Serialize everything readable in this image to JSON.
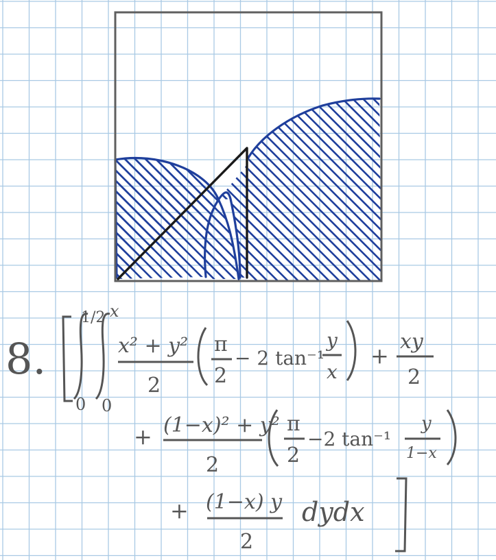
{
  "colors": {
    "paper": "#ffffff",
    "grid": "#a9c9e4",
    "pencil": "#555555",
    "ink_black": "#1a1a1a",
    "ink_blue": "#1f3f9c"
  },
  "figure": {
    "description_icon": "shaded-region-diagram-icon"
  },
  "problem": {
    "number": "8.",
    "outer_upper_limit": "1/2",
    "outer_lower_limit": "0",
    "inner_upper_limit": "x",
    "inner_lower_limit": "0",
    "term1_numerator": "x² + y²",
    "term1_denominator": "2",
    "term1_paren_pi": "π",
    "term1_paren_pi_den": "2",
    "term1_paren_minus": "− 2 tan⁻¹",
    "term1_paren_frac_num": "y",
    "term1_paren_frac_den": "x",
    "plus1": "+",
    "term2_numerator": "xy",
    "term2_denominator": "2",
    "plus2": "+",
    "term3_numerator": "(1−x)² + y²",
    "term3_denominator": "2",
    "term3_paren_pi": "π",
    "term3_paren_pi_den": "2",
    "term3_paren_minus": "−2 tan⁻¹",
    "term3_paren_frac_num": "y",
    "term3_paren_frac_den": "1−x",
    "plus3": "+",
    "term4_numerator": "(1−x) y",
    "term4_denominator": "2",
    "differential": "dydx"
  }
}
